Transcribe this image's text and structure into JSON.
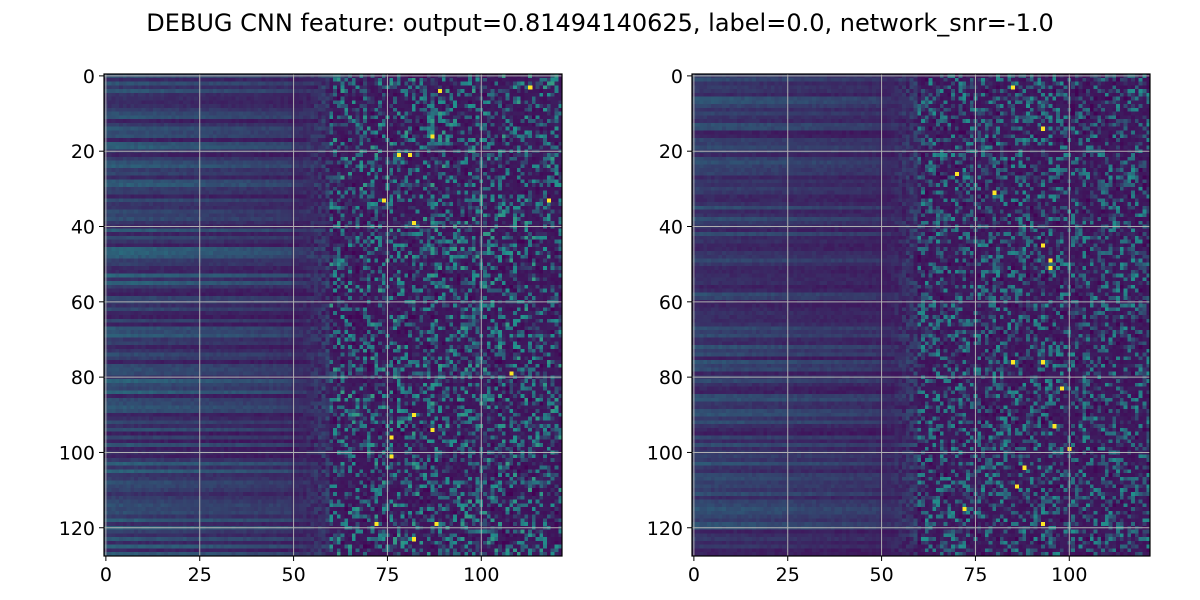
{
  "figure": {
    "title": "DEBUG CNN feature: output=0.81494140625, label=0.0, network_snr=-1.0"
  },
  "chart_data": [
    {
      "type": "heatmap",
      "title": "",
      "xlabel": "",
      "ylabel": "",
      "grid": true,
      "colormap": "viridis",
      "shape": [
        128,
        122
      ],
      "xlim": [
        -0.5,
        121.5
      ],
      "ylim": [
        127.5,
        -0.5
      ],
      "x_ticks": [
        0,
        25,
        50,
        75,
        100
      ],
      "x_tick_labels": [
        "0",
        "25",
        "50",
        "75",
        "100"
      ],
      "y_ticks": [
        0,
        20,
        40,
        60,
        80,
        100,
        120
      ],
      "y_tick_labels": [
        "0",
        "20",
        "40",
        "60",
        "80",
        "100",
        "120"
      ],
      "colors": {
        "low": "#440154",
        "mid": "#21918c",
        "high": "#fde725"
      },
      "pattern": {
        "smooth_until_column": 50,
        "noisy_from_column": 60,
        "background_value": 0.05,
        "smooth_band_value_range": [
          0.1,
          0.35
        ],
        "noise_value_range": [
          0.0,
          0.55
        ],
        "hotspot_value": 1.0,
        "hotspots": [
          [
            79,
            108
          ],
          [
            21,
            81
          ],
          [
            16,
            87
          ],
          [
            39,
            82
          ],
          [
            94,
            87
          ],
          [
            119,
            72
          ],
          [
            119,
            88
          ],
          [
            123,
            82
          ],
          [
            4,
            89
          ],
          [
            96,
            76
          ],
          [
            101,
            76
          ],
          [
            33,
            74
          ],
          [
            3,
            113
          ],
          [
            21,
            78
          ],
          [
            33,
            118
          ],
          [
            90,
            82
          ]
        ]
      }
    },
    {
      "type": "heatmap",
      "title": "",
      "xlabel": "",
      "ylabel": "",
      "grid": true,
      "colormap": "viridis",
      "shape": [
        128,
        122
      ],
      "xlim": [
        -0.5,
        121.5
      ],
      "ylim": [
        127.5,
        -0.5
      ],
      "x_ticks": [
        0,
        25,
        50,
        75,
        100
      ],
      "x_tick_labels": [
        "0",
        "25",
        "50",
        "75",
        "100"
      ],
      "y_ticks": [
        0,
        20,
        40,
        60,
        80,
        100,
        120
      ],
      "y_tick_labels": [
        "0",
        "20",
        "40",
        "60",
        "80",
        "100",
        "120"
      ],
      "colors": {
        "low": "#440154",
        "mid": "#21918c",
        "high": "#fde725"
      },
      "pattern": {
        "smooth_until_column": 50,
        "noisy_from_column": 60,
        "background_value": 0.05,
        "smooth_band_value_range": [
          0.1,
          0.3
        ],
        "noise_value_range": [
          0.0,
          0.5
        ],
        "hotspot_value": 1.0,
        "hotspots": [
          [
            3,
            85
          ],
          [
            14,
            93
          ],
          [
            45,
            93
          ],
          [
            49,
            95
          ],
          [
            51,
            95
          ],
          [
            76,
            85
          ],
          [
            76,
            93
          ],
          [
            83,
            98
          ],
          [
            115,
            72
          ],
          [
            119,
            93
          ],
          [
            104,
            88
          ],
          [
            26,
            70
          ],
          [
            31,
            80
          ],
          [
            99,
            100
          ],
          [
            109,
            86
          ],
          [
            93,
            96
          ]
        ]
      }
    }
  ]
}
